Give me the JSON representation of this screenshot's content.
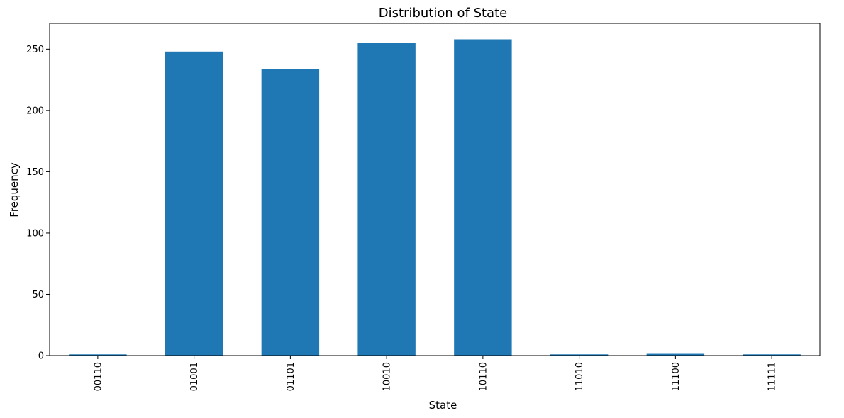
{
  "chart_data": {
    "type": "bar",
    "title": "Distribution of State",
    "xlabel": "State",
    "ylabel": "Frequency",
    "categories": [
      "00110",
      "01001",
      "01101",
      "10010",
      "10110",
      "11010",
      "11100",
      "11111"
    ],
    "values": [
      1,
      248,
      234,
      255,
      258,
      1,
      2,
      1
    ],
    "ylim": [
      0,
      271
    ],
    "yticks": [
      0,
      50,
      100,
      150,
      200,
      250
    ],
    "bar_color": "#1f77b4",
    "grid": false,
    "legend": false,
    "xtick_rotation": "vertical"
  }
}
